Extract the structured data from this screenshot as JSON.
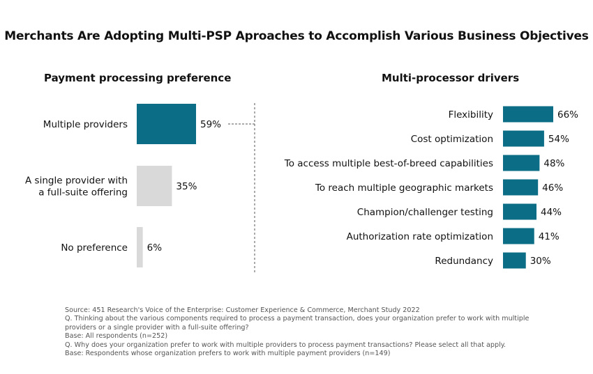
{
  "title": "Merchants Are Adopting Multi-PSP Aproaches to Accomplish Various Business Objectives",
  "colors": {
    "accent": "#0b6d86",
    "muted": "#d9d9d9",
    "divider": "#555555"
  },
  "chart_data": [
    {
      "type": "bar",
      "orientation": "vertical",
      "title": "Payment processing preference",
      "categories": [
        [
          "Multiple providers"
        ],
        [
          "A single provider with",
          "a full-suite offering"
        ],
        [
          "No preference"
        ]
      ],
      "values": [
        59,
        35,
        6
      ],
      "value_labels": [
        "59%",
        "35%",
        "6%"
      ],
      "highlight": [
        true,
        false,
        false
      ],
      "unit": "%"
    },
    {
      "type": "bar",
      "orientation": "horizontal",
      "title": "Multi-processor drivers",
      "categories": [
        "Flexibility",
        "Cost optimization",
        "To access multiple best-of-breed capabilities",
        "To reach multiple geographic markets",
        "Champion/challenger testing",
        "Authorization rate optimization",
        "Redundancy"
      ],
      "values": [
        66,
        54,
        48,
        46,
        44,
        41,
        30
      ],
      "value_labels": [
        "66%",
        "54%",
        "48%",
        "46%",
        "44%",
        "41%",
        "30%"
      ],
      "unit": "%"
    }
  ],
  "footnotes": [
    "Source: 451 Research's Voice of the Enterprise: Customer Experience & Commerce, Merchant Study 2022",
    "Q. Thinking about the various components required to process a payment transaction, does your organization prefer to work with multiple providers or a single provider with a full-suite offering?",
    "Base: All respondents (n=252)",
    "Q. Why does your organization prefer to work with multiple providers to process payment transactions? Please select all that apply.",
    "Base: Respondents whose organization prefers to work with multiple payment providers (n=149)"
  ]
}
